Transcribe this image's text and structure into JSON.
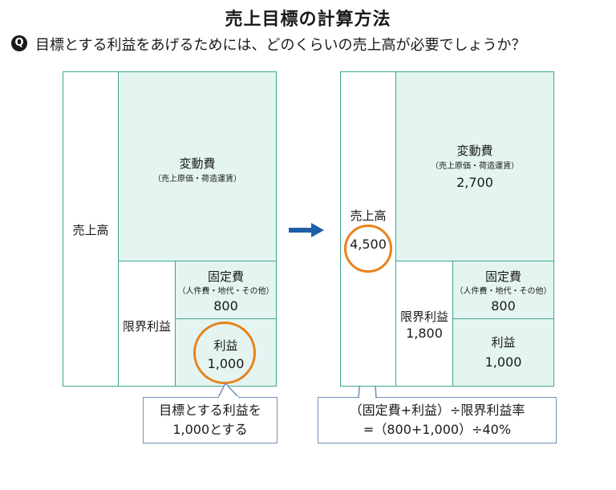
{
  "title": "売上目標の計算方法",
  "question": {
    "badge": "Q",
    "text": "目標とする利益をあげるためには、どのくらいの売上高が必要でしょうか？"
  },
  "left": {
    "sales_label": "売上高",
    "variable_cost_label": "変動費",
    "variable_cost_sub": "（売上原価・荷造運賃）",
    "marginal_profit_label": "限界利益",
    "fixed_cost_label": "固定費",
    "fixed_cost_sub": "（人件費・地代・その他）",
    "fixed_cost_value": "800",
    "profit_label": "利益",
    "profit_value": "1,000",
    "callout_line1": "目標とする利益を",
    "callout_line2": "1,000とする"
  },
  "right": {
    "sales_label": "売上高",
    "sales_value": "4,500",
    "variable_cost_label": "変動費",
    "variable_cost_sub": "（売上原価・荷造運賃）",
    "variable_cost_value": "2,700",
    "marginal_profit_label": "限界利益",
    "marginal_profit_value": "1,800",
    "fixed_cost_label": "固定費",
    "fixed_cost_sub": "（人件費・地代・その他）",
    "fixed_cost_value": "800",
    "profit_label": "利益",
    "profit_value": "1,000",
    "callout_line1": "（固定費+利益）÷限界利益率",
    "callout_line2": "=（800+1,000）÷40%"
  },
  "colors": {
    "mint_fill": "#e4f4f1",
    "teal_border": "#3aa88f",
    "orange_circle": "#e8831c",
    "arrow_blue": "#1f5fa8",
    "callout_border": "#6f8fb5"
  }
}
